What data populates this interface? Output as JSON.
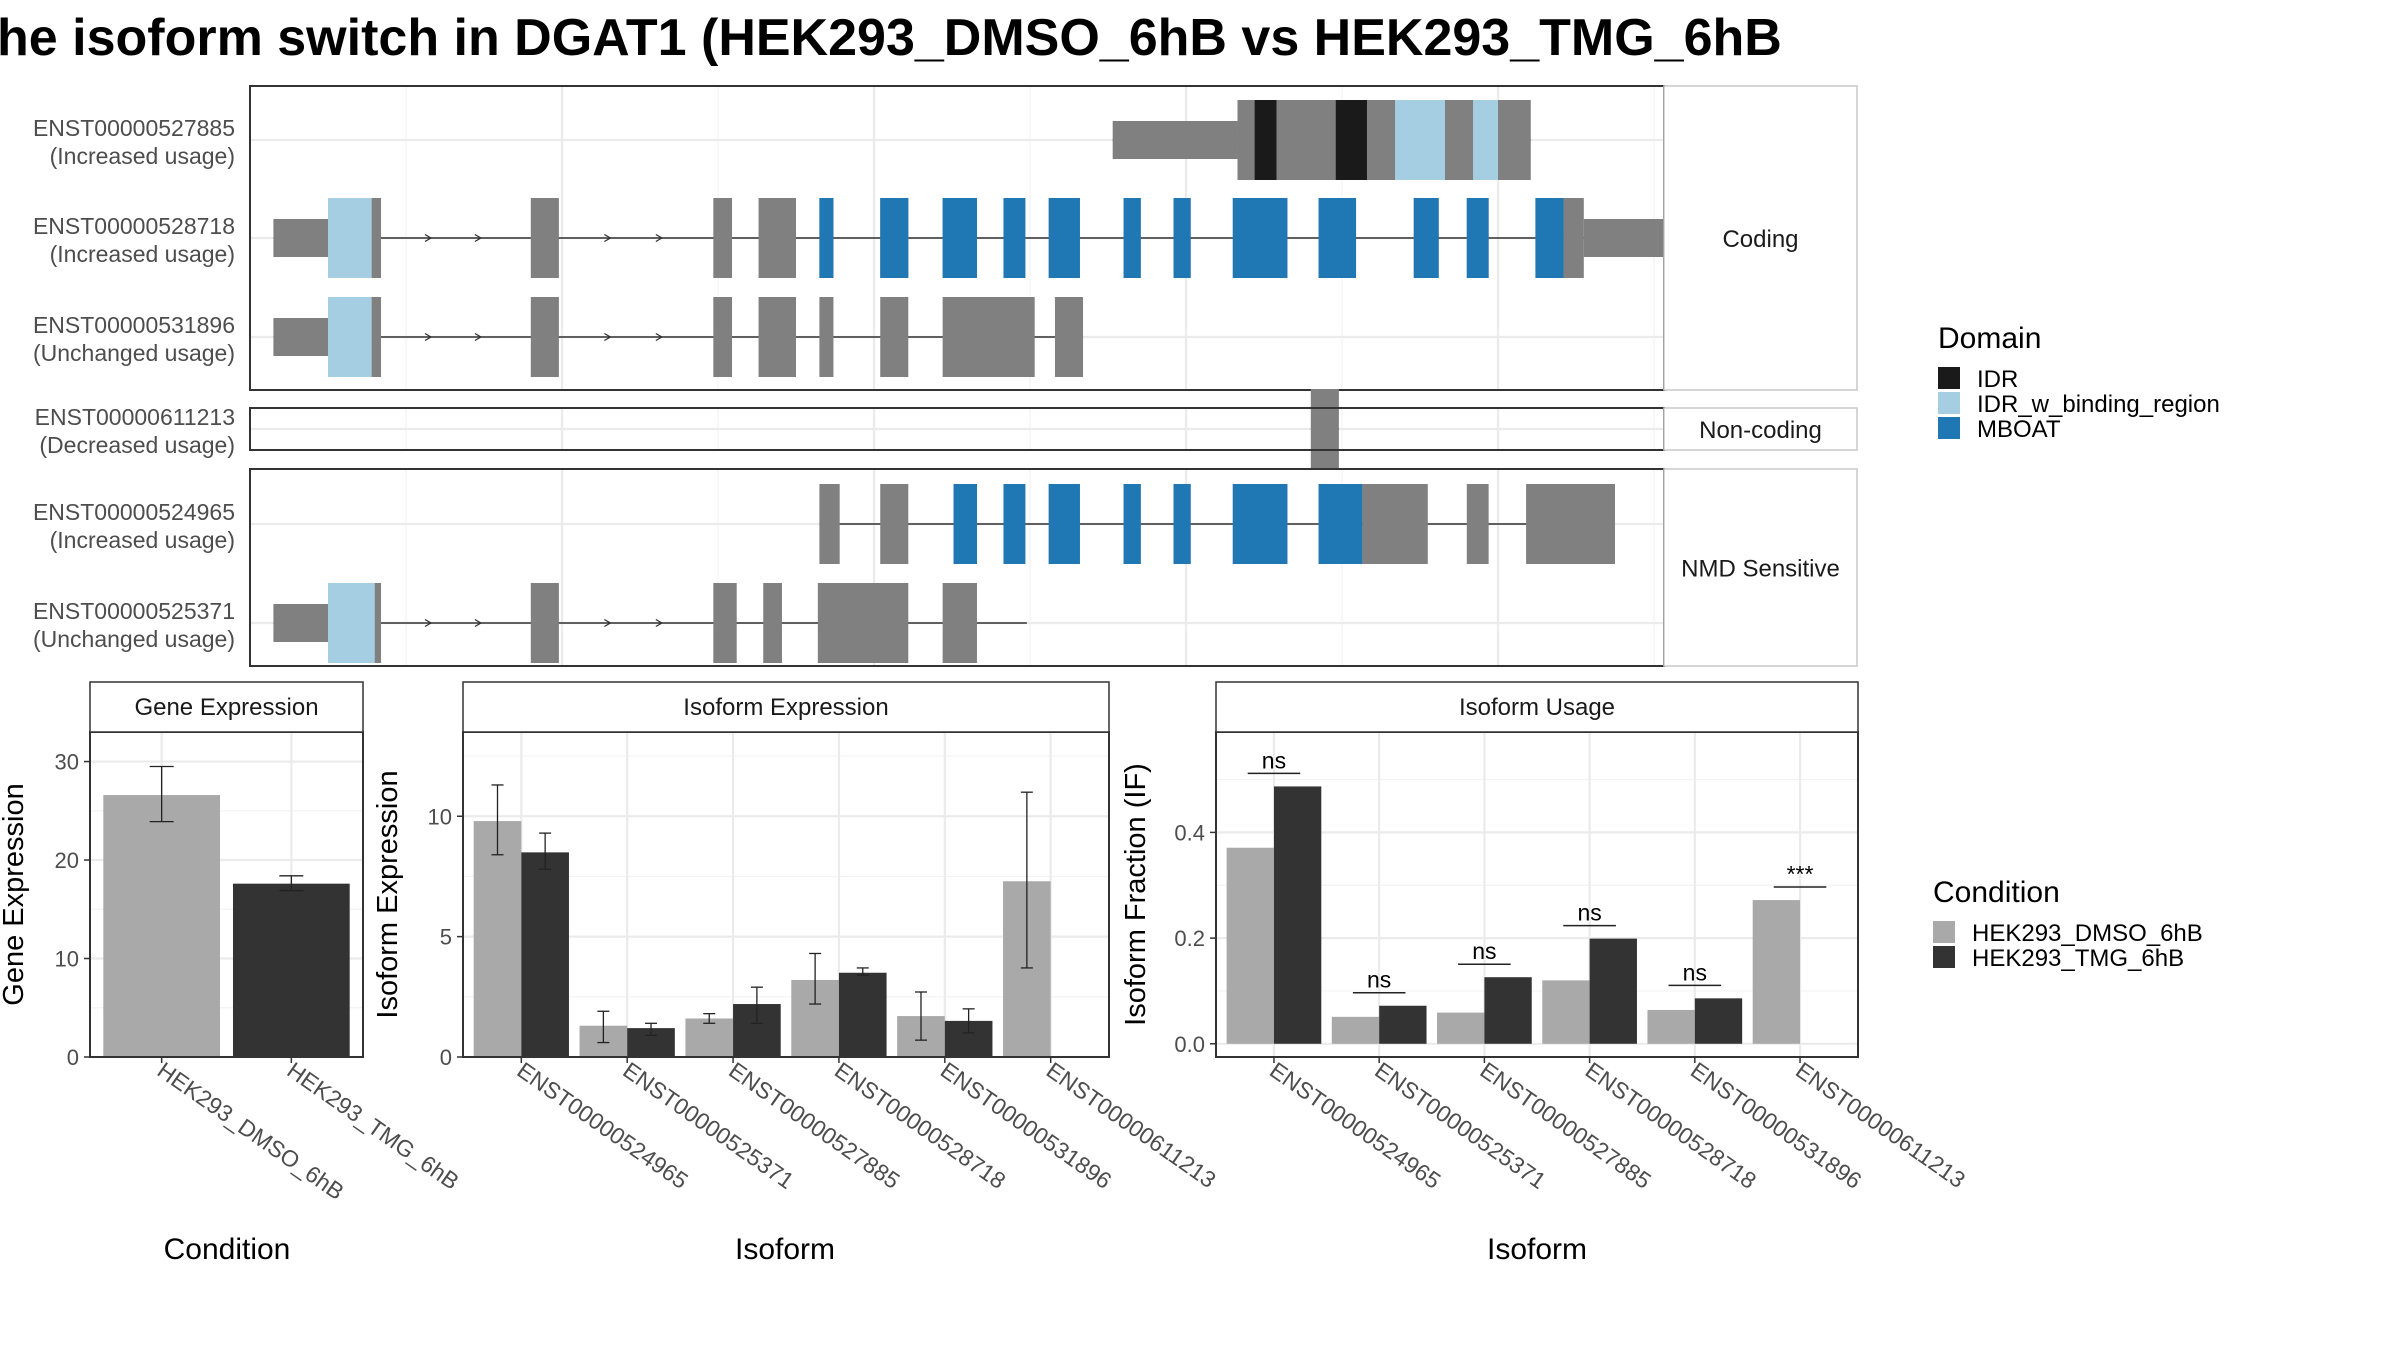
{
  "title": "he isoform switch in DGAT1 (HEK293_DMSO_6hB vs HEK293_TMG_6hB",
  "colors": {
    "dmso": "#a9a9a9",
    "tmg": "#333333",
    "exon": "#808080",
    "IDR": "#1a1a1a",
    "IDR_w_binding_region": "#a6cee3",
    "MBOAT": "#1f78b4"
  },
  "domain_legend": {
    "title": "Domain",
    "items": [
      {
        "name": "IDR",
        "color": "#1a1a1a"
      },
      {
        "name": "IDR_w_binding_region",
        "color": "#a6cee3"
      },
      {
        "name": "MBOAT",
        "color": "#1f78b4"
      }
    ]
  },
  "condition_legend": {
    "title": "Condition",
    "items": [
      {
        "name": "HEK293_DMSO_6hB",
        "color": "#a9a9a9"
      },
      {
        "name": "HEK293_TMG_6hB",
        "color": "#333333"
      }
    ]
  },
  "chart_data": [
    {
      "type": "transcript_structure",
      "facets": [
        {
          "label": "Coding",
          "transcripts": [
            {
              "id": "ENST00000527885",
              "status": "(Increased usage)",
              "start": 753,
              "end": 1021,
              "exons": [
                [
                  753,
                  833,
                  "utr"
                ],
                [
                  833,
                  1021,
                  "cds"
                ]
              ],
              "domains": [
                [
                  844,
                  858,
                  "IDR"
                ],
                [
                  896,
                  916,
                  "IDR"
                ],
                [
                  934,
                  966,
                  "IDR_w_binding_region"
                ],
                [
                  984,
                  1000,
                  "IDR_w_binding_region"
                ]
              ]
            },
            {
              "id": "ENST00000528718",
              "status": "(Increased usage)",
              "start": 215,
              "end": 1185,
              "exons": [
                [
                  215,
                  250,
                  "utr"
                ],
                [
                  250,
                  284,
                  "cds"
                ],
                [
                  380,
                  398,
                  "cds"
                ],
                [
                  497,
                  509,
                  "cds"
                ],
                [
                  526,
                  550,
                  "cds"
                ],
                [
                  565,
                  574,
                  "cds"
                ],
                [
                  604,
                  622,
                  "cds"
                ],
                [
                  644,
                  666,
                  "cds"
                ],
                [
                  683,
                  697,
                  "cds"
                ],
                [
                  712,
                  732,
                  "cds"
                ],
                [
                  760,
                  771,
                  "cds"
                ],
                [
                  792,
                  803,
                  "cds"
                ],
                [
                  830,
                  865,
                  "cds"
                ],
                [
                  885,
                  909,
                  "cds"
                ],
                [
                  946,
                  962,
                  "cds"
                ],
                [
                  980,
                  994,
                  "cds"
                ],
                [
                  1024,
                  1042,
                  "cds"
                ],
                [
                  1042,
                  1055,
                  "cds"
                ],
                [
                  1055,
                  1185,
                  "utr"
                ]
              ],
              "domains": [
                [
                  250,
                  278,
                  "IDR_w_binding_region"
                ],
                [
                  565,
                  574,
                  "MBOAT"
                ],
                [
                  604,
                  622,
                  "MBOAT"
                ],
                [
                  644,
                  666,
                  "MBOAT"
                ],
                [
                  683,
                  697,
                  "MBOAT"
                ],
                [
                  712,
                  732,
                  "MBOAT"
                ],
                [
                  760,
                  771,
                  "MBOAT"
                ],
                [
                  792,
                  803,
                  "MBOAT"
                ],
                [
                  830,
                  865,
                  "MBOAT"
                ],
                [
                  885,
                  909,
                  "MBOAT"
                ],
                [
                  946,
                  962,
                  "MBOAT"
                ],
                [
                  980,
                  994,
                  "MBOAT"
                ],
                [
                  1024,
                  1042,
                  "MBOAT"
                ]
              ]
            },
            {
              "id": "ENST00000531896",
              "status": "(Unchanged usage)",
              "start": 215,
              "end": 734,
              "exons": [
                [
                  215,
                  250,
                  "utr"
                ],
                [
                  250,
                  284,
                  "cds"
                ],
                [
                  380,
                  398,
                  "cds"
                ],
                [
                  497,
                  509,
                  "cds"
                ],
                [
                  526,
                  550,
                  "cds"
                ],
                [
                  565,
                  574,
                  "cds"
                ],
                [
                  604,
                  622,
                  "cds"
                ],
                [
                  644,
                  703,
                  "cds"
                ],
                [
                  716,
                  734,
                  "cds"
                ]
              ],
              "domains": [
                [
                  250,
                  278,
                  "IDR_w_binding_region"
                ]
              ]
            }
          ]
        },
        {
          "label": "Non-coding",
          "transcripts": [
            {
              "id": "ENST00000611213",
              "status": "(Decreased usage)",
              "start": 880,
              "end": 898,
              "exons": [
                [
                  880,
                  898,
                  "cds"
                ]
              ],
              "domains": []
            }
          ]
        },
        {
          "label": "NMD Sensitive",
          "transcripts": [
            {
              "id": "ENST00000524965",
              "status": "(Increased usage)",
              "start": 565,
              "end": 1075,
              "exons": [
                [
                  565,
                  578,
                  "cds"
                ],
                [
                  604,
                  622,
                  "cds"
                ],
                [
                  651,
                  666,
                  "cds"
                ],
                [
                  683,
                  697,
                  "cds"
                ],
                [
                  712,
                  732,
                  "cds"
                ],
                [
                  760,
                  771,
                  "cds"
                ],
                [
                  792,
                  803,
                  "cds"
                ],
                [
                  830,
                  865,
                  "cds"
                ],
                [
                  885,
                  913,
                  "cds"
                ],
                [
                  913,
                  955,
                  "cds"
                ],
                [
                  980,
                  994,
                  "cds"
                ],
                [
                  1018,
                  1075,
                  "cds"
                ]
              ],
              "domains": [
                [
                  651,
                  666,
                  "MBOAT"
                ],
                [
                  683,
                  697,
                  "MBOAT"
                ],
                [
                  712,
                  732,
                  "MBOAT"
                ],
                [
                  760,
                  771,
                  "MBOAT"
                ],
                [
                  792,
                  803,
                  "MBOAT"
                ],
                [
                  830,
                  865,
                  "MBOAT"
                ],
                [
                  885,
                  913,
                  "MBOAT"
                ]
              ]
            },
            {
              "id": "ENST00000525371",
              "status": "(Unchanged usage)",
              "start": 215,
              "end": 698,
              "exons": [
                [
                  215,
                  250,
                  "utr"
                ],
                [
                  250,
                  284,
                  "cds"
                ],
                [
                  380,
                  398,
                  "cds"
                ],
                [
                  497,
                  512,
                  "cds"
                ],
                [
                  529,
                  541,
                  "cds"
                ],
                [
                  564,
                  622,
                  "cds"
                ],
                [
                  644,
                  666,
                  "cds"
                ]
              ],
              "domains": [
                [
                  250,
                  280,
                  "IDR_w_binding_region"
                ]
              ]
            }
          ]
        }
      ]
    },
    {
      "type": "bar",
      "title": "Gene Expression",
      "xlabel": "Condition",
      "ylabel": "Gene Expression",
      "ylim": [
        0,
        33
      ],
      "yticks": [
        0,
        10,
        20,
        30
      ],
      "categories": [
        "HEK293_DMSO_6hB",
        "HEK293_TMG_6hB"
      ],
      "values": [
        26.6,
        17.6
      ],
      "errors": [
        [
          23.9,
          29.5
        ],
        [
          16.9,
          18.4
        ]
      ]
    },
    {
      "type": "bar",
      "title": "Isoform Expression",
      "xlabel": "Isoform",
      "ylabel": "Isoform Expression",
      "ylim": [
        0,
        13.5
      ],
      "yticks": [
        0,
        5,
        10
      ],
      "categories": [
        "ENST00000524965",
        "ENST00000525371",
        "ENST00000527885",
        "ENST00000528718",
        "ENST00000531896",
        "ENST00000611213"
      ],
      "series": [
        {
          "name": "HEK293_DMSO_6hB",
          "values": [
            9.8,
            1.3,
            1.6,
            3.2,
            1.7,
            7.3
          ],
          "errors": [
            [
              8.4,
              11.3
            ],
            [
              0.6,
              1.9
            ],
            [
              1.4,
              1.8
            ],
            [
              2.2,
              4.3
            ],
            [
              0.7,
              2.7
            ],
            [
              3.7,
              11.0
            ]
          ]
        },
        {
          "name": "HEK293_TMG_6hB",
          "values": [
            8.5,
            1.2,
            2.2,
            3.5,
            1.5,
            0.0
          ],
          "errors": [
            [
              7.8,
              9.3
            ],
            [
              0.9,
              1.4
            ],
            [
              1.4,
              2.9
            ],
            [
              3.4,
              3.7
            ],
            [
              1.0,
              2.0
            ],
            [
              0.0,
              0.0
            ]
          ]
        }
      ]
    },
    {
      "type": "bar",
      "title": "Isoform Usage",
      "xlabel": "Isoform",
      "ylabel": "Isoform Fraction (IF)",
      "ylim": [
        -0.025,
        0.59
      ],
      "yticks": [
        0.0,
        0.2,
        0.4
      ],
      "ytick_labels": [
        "0.0",
        "0.2",
        "0.4"
      ],
      "categories": [
        "ENST00000524965",
        "ENST00000525371",
        "ENST00000527885",
        "ENST00000528718",
        "ENST00000531896",
        "ENST00000611213"
      ],
      "series": [
        {
          "name": "HEK293_DMSO_6hB",
          "values": [
            0.371,
            0.051,
            0.059,
            0.12,
            0.064,
            0.272
          ]
        },
        {
          "name": "HEK293_TMG_6hB",
          "values": [
            0.487,
            0.072,
            0.126,
            0.199,
            0.086,
            0.0
          ]
        }
      ],
      "significance": [
        "ns",
        "ns",
        "ns",
        "ns",
        "ns",
        "***"
      ]
    }
  ]
}
